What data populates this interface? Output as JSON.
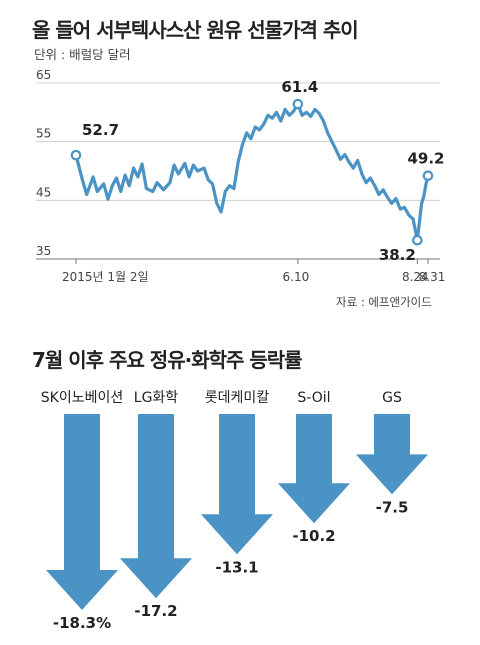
{
  "titles": {
    "line_title": "올 들어 서부텍사스산 원유 선물가격 추이",
    "unit": "단위 : 배럴당 달러",
    "bar_title": "7월 이후 주요 정유·화학주 등락률",
    "source": "자료 : 에프앤가이드"
  },
  "colors": {
    "line": "#4a93c4",
    "bar": "#4a93c4"
  },
  "chart_data": [
    {
      "type": "line",
      "title": "올 들어 서부텍사스산 원유 선물가격 추이",
      "ylabel": "단위 : 배럴당 달러",
      "ylim": [
        35,
        65
      ],
      "yticks": [
        35,
        45,
        55,
        65
      ],
      "grid": true,
      "x_tick_labels": [
        {
          "index": 0,
          "label": "2015년 1월 2일"
        },
        {
          "index": 104,
          "label": "6.10"
        },
        {
          "index": 160,
          "label": "8.24"
        },
        {
          "index": 165,
          "label": "8.31"
        }
      ],
      "annotations": [
        {
          "index": 0,
          "label": "52.7"
        },
        {
          "index": 104,
          "label": "61.4"
        },
        {
          "index": 160,
          "label": "38.2"
        },
        {
          "index": 165,
          "label": "49.2"
        }
      ],
      "x_count": 166,
      "keypoints": [
        [
          0,
          52.7
        ],
        [
          3,
          48.5
        ],
        [
          5,
          46.0
        ],
        [
          8,
          49.0
        ],
        [
          10,
          46.5
        ],
        [
          13,
          47.8
        ],
        [
          15,
          45.2
        ],
        [
          17,
          47.5
        ],
        [
          19,
          48.8
        ],
        [
          21,
          46.5
        ],
        [
          23,
          49.3
        ],
        [
          25,
          47.5
        ],
        [
          27,
          50.5
        ],
        [
          29,
          49.0
        ],
        [
          31,
          51.2
        ],
        [
          33,
          47.0
        ],
        [
          36,
          46.5
        ],
        [
          38,
          48.0
        ],
        [
          41,
          46.8
        ],
        [
          44,
          48.0
        ],
        [
          46,
          51.0
        ],
        [
          48,
          49.5
        ],
        [
          51,
          51.3
        ],
        [
          53,
          49.0
        ],
        [
          55,
          51.0
        ],
        [
          57,
          50.0
        ],
        [
          60,
          50.5
        ],
        [
          62,
          48.5
        ],
        [
          64,
          47.8
        ],
        [
          66,
          44.5
        ],
        [
          68,
          43.0
        ],
        [
          70,
          46.5
        ],
        [
          72,
          47.5
        ],
        [
          74,
          47.0
        ],
        [
          76,
          51.5
        ],
        [
          78,
          54.5
        ],
        [
          80,
          56.5
        ],
        [
          82,
          55.5
        ],
        [
          84,
          57.5
        ],
        [
          86,
          57.0
        ],
        [
          88,
          58.0
        ],
        [
          90,
          59.5
        ],
        [
          92,
          59.0
        ],
        [
          94,
          60.0
        ],
        [
          96,
          58.5
        ],
        [
          98,
          60.5
        ],
        [
          100,
          59.5
        ],
        [
          102,
          60.2
        ],
        [
          104,
          61.4
        ],
        [
          106,
          59.5
        ],
        [
          108,
          60.0
        ],
        [
          110,
          59.3
        ],
        [
          112,
          60.5
        ],
        [
          114,
          59.8
        ],
        [
          116,
          58.5
        ],
        [
          118,
          56.5
        ],
        [
          120,
          55.0
        ],
        [
          122,
          53.5
        ],
        [
          124,
          52.0
        ],
        [
          126,
          52.8
        ],
        [
          128,
          51.5
        ],
        [
          130,
          50.5
        ],
        [
          132,
          51.8
        ],
        [
          134,
          49.5
        ],
        [
          136,
          48.0
        ],
        [
          138,
          48.8
        ],
        [
          140,
          47.5
        ],
        [
          142,
          46.0
        ],
        [
          144,
          46.8
        ],
        [
          146,
          45.5
        ],
        [
          148,
          44.5
        ],
        [
          150,
          45.3
        ],
        [
          152,
          43.5
        ],
        [
          154,
          43.8
        ],
        [
          156,
          42.5
        ],
        [
          158,
          41.8
        ],
        [
          160,
          38.2
        ],
        [
          162,
          44.5
        ],
        [
          163,
          45.6
        ],
        [
          164,
          47.7
        ],
        [
          165,
          49.2
        ]
      ]
    },
    {
      "type": "bar",
      "title": "7월 이후 주요 정유·화학주 등락률",
      "categories": [
        "SK이노베이션",
        "LG화학",
        "롯데케미칼",
        "S-Oil",
        "GS"
      ],
      "values": [
        -18.3,
        -17.2,
        -13.1,
        -10.2,
        -7.5
      ],
      "value_labels": [
        "-18.3%",
        "-17.2",
        "-13.1",
        "-10.2",
        "-7.5"
      ],
      "orientation": "downward-arrows"
    }
  ]
}
